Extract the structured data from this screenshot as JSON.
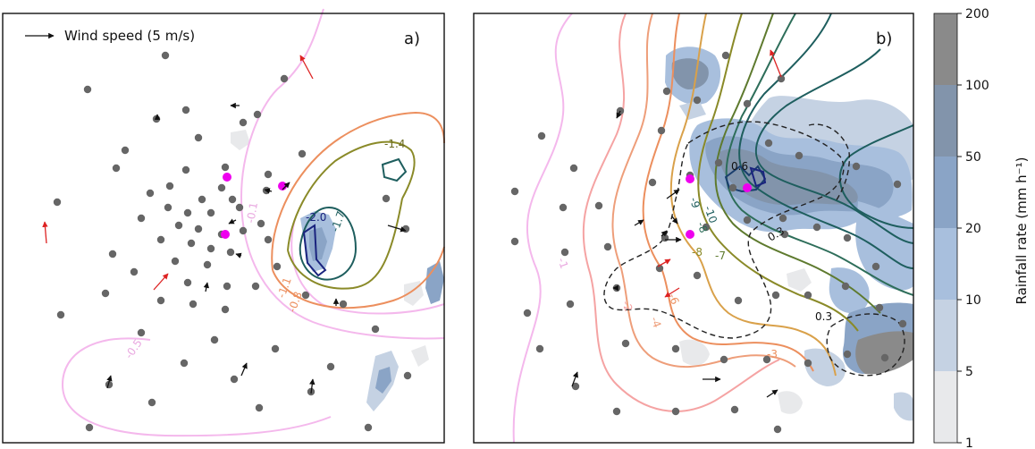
{
  "chart_data": [
    {
      "type": "contour",
      "panel_label": "a)",
      "legend": {
        "label": "Wind speed (5 m/s)"
      },
      "contour_labels": [
        "-1.4",
        "-2.0",
        "-1.7",
        "-0.1",
        "-1.1",
        "-0.8",
        "-0.5"
      ],
      "highlight_color": "#ee00ee",
      "station_color": "#666666",
      "arrow_colors": {
        "normal": "#111111",
        "highlight": "#dd2222"
      }
    },
    {
      "type": "contour",
      "panel_label": "b)",
      "contour_labels": [
        "0.6",
        "-9",
        "-10",
        "-8",
        "-7",
        "-8",
        "-6",
        "-4",
        "-2",
        "-1",
        "-3",
        "0.3",
        "0.3"
      ],
      "highlight_color": "#ee00ee"
    }
  ],
  "colorbar": {
    "label": "Rainfall rate (mm h⁻¹)",
    "ticks": [
      "200",
      "100",
      "50",
      "20",
      "10",
      "5",
      "1"
    ],
    "bins": [
      {
        "from": 100,
        "to": 200,
        "color": "#8a8a8a"
      },
      {
        "from": 50,
        "to": 100,
        "color": "#8294ab"
      },
      {
        "from": 20,
        "to": 50,
        "color": "#8aa4c6"
      },
      {
        "from": 10,
        "to": 20,
        "color": "#a8bfdd"
      },
      {
        "from": 5,
        "to": 10,
        "color": "#c5d2e3"
      },
      {
        "from": 1,
        "to": 5,
        "color": "#e8e9eb"
      }
    ]
  }
}
